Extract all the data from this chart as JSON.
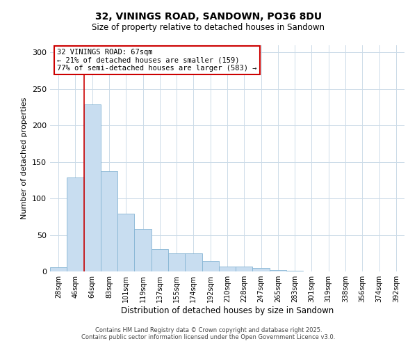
{
  "title": "32, VININGS ROAD, SANDOWN, PO36 8DU",
  "subtitle": "Size of property relative to detached houses in Sandown",
  "xlabel": "Distribution of detached houses by size in Sandown",
  "ylabel": "Number of detached properties",
  "bar_values": [
    6,
    129,
    229,
    137,
    79,
    58,
    31,
    25,
    25,
    14,
    7,
    7,
    5,
    2,
    1,
    0,
    0,
    0,
    0,
    0,
    0
  ],
  "bar_labels": [
    "28sqm",
    "46sqm",
    "64sqm",
    "83sqm",
    "101sqm",
    "119sqm",
    "137sqm",
    "155sqm",
    "174sqm",
    "192sqm",
    "210sqm",
    "228sqm",
    "247sqm",
    "265sqm",
    "283sqm",
    "301sqm",
    "319sqm",
    "338sqm",
    "356sqm",
    "374sqm",
    "392sqm"
  ],
  "bar_color": "#c8ddf0",
  "bar_edge_color": "#85b4d4",
  "vline_color": "#cc0000",
  "ylim": [
    0,
    310
  ],
  "yticks": [
    0,
    50,
    100,
    150,
    200,
    250,
    300
  ],
  "annotation_title": "32 VININGS ROAD: 67sqm",
  "annotation_line1": "← 21% of detached houses are smaller (159)",
  "annotation_line2": "77% of semi-detached houses are larger (583) →",
  "annotation_box_color": "#ffffff",
  "annotation_box_edge": "#cc0000",
  "footer1": "Contains HM Land Registry data © Crown copyright and database right 2025.",
  "footer2": "Contains public sector information licensed under the Open Government Licence v3.0.",
  "bg_color": "#ffffff",
  "grid_color": "#ccdbe8"
}
